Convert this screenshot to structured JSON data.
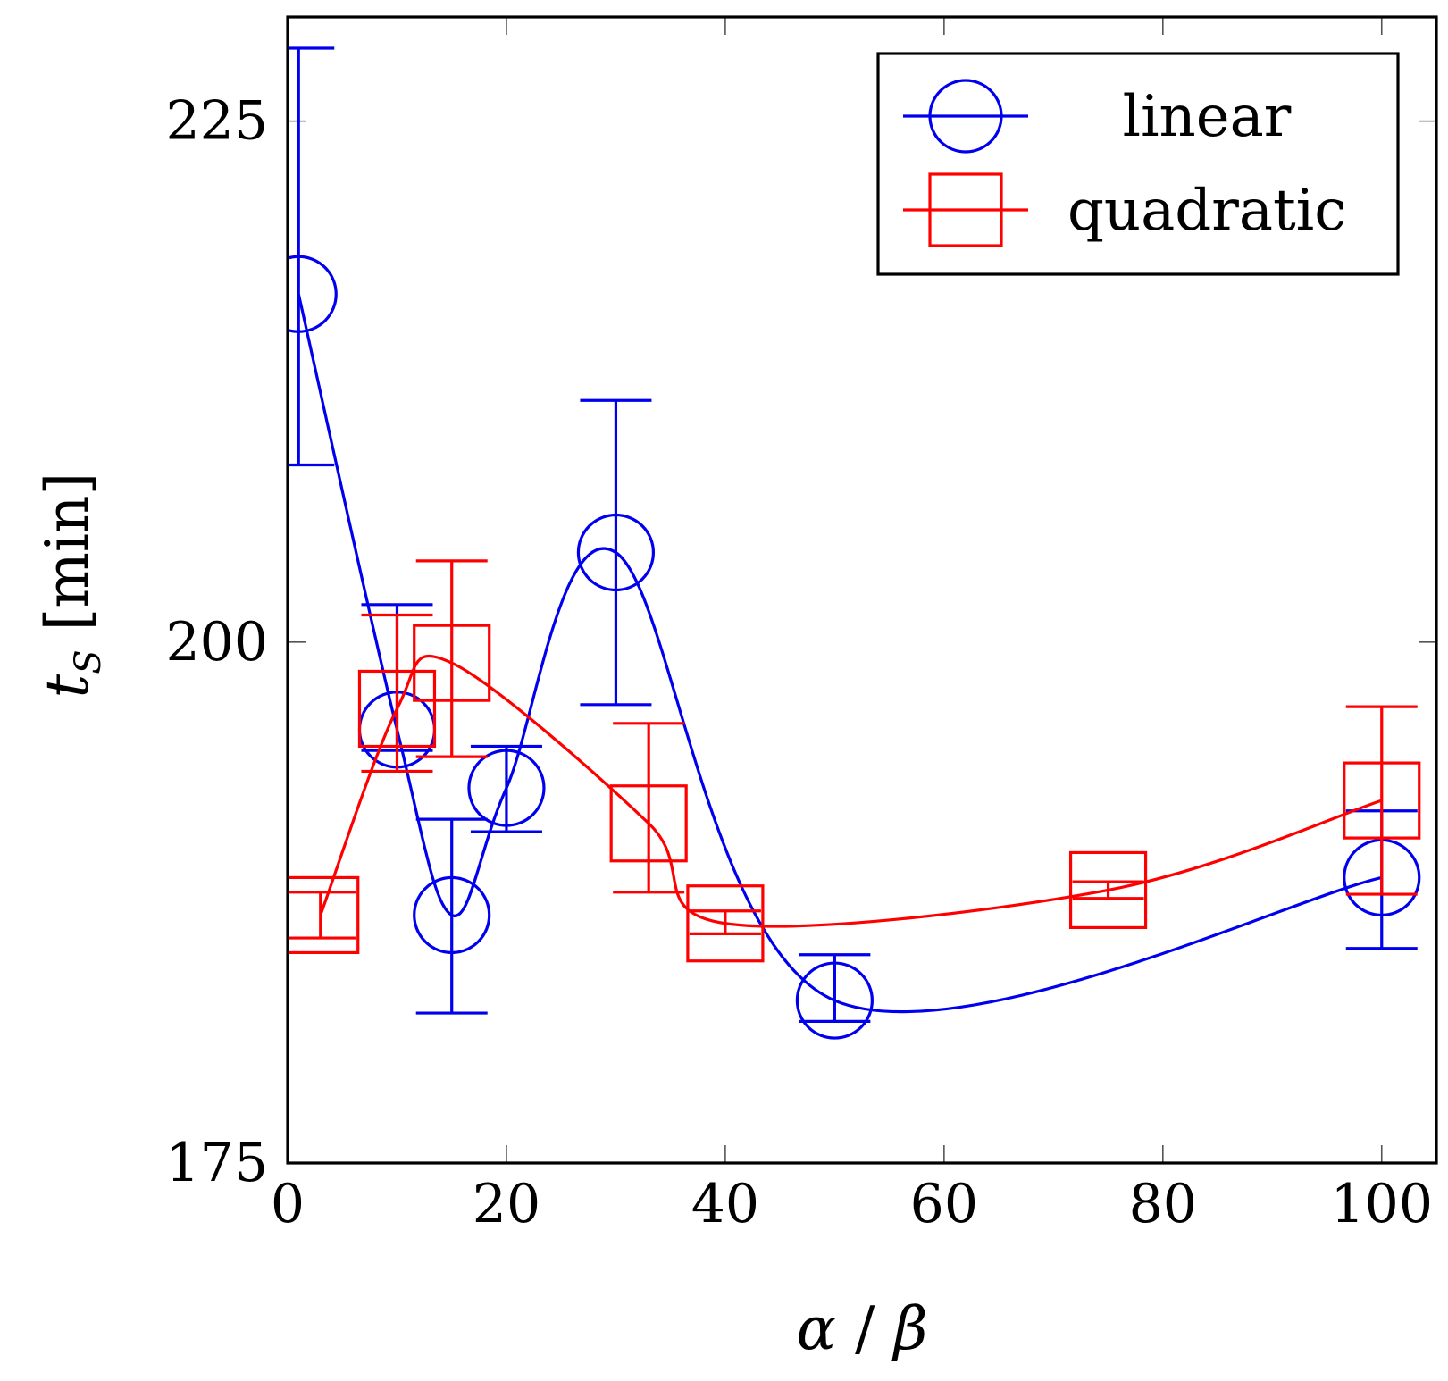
{
  "chart_data": {
    "type": "line",
    "title": "",
    "xlabel_parts": [
      "α",
      " / ",
      "β"
    ],
    "ylabel_parts": [
      "t",
      "S",
      " [min]"
    ],
    "xlim": [
      0,
      105
    ],
    "ylim": [
      175,
      230
    ],
    "xticks": [
      0,
      20,
      40,
      60,
      80,
      100
    ],
    "yticks": [
      175,
      200,
      225
    ],
    "grid": false,
    "legend_position": "top-right",
    "series": [
      {
        "name": "linear",
        "color": "#0000ee",
        "marker": "circle",
        "x": [
          1,
          10,
          15,
          20,
          30,
          50,
          100
        ],
        "y": [
          216.7,
          195.8,
          186.9,
          193.0,
          204.3,
          182.8,
          188.7
        ],
        "err_low": [
          8.2,
          1.0,
          4.7,
          2.1,
          7.3,
          1.0,
          3.4
        ],
        "err_high": [
          11.8,
          6.0,
          4.6,
          2.0,
          7.3,
          2.2,
          3.2
        ]
      },
      {
        "name": "quadratic",
        "color": "#ff0000",
        "marker": "square",
        "x": [
          3,
          10,
          15,
          33,
          40,
          75,
          100
        ],
        "y": [
          186.9,
          196.8,
          199.0,
          191.3,
          186.5,
          188.1,
          192.4
        ],
        "err_low": [
          1.1,
          3.0,
          4.5,
          3.3,
          0.5,
          0.4,
          4.5
        ],
        "err_high": [
          1.1,
          4.5,
          4.9,
          4.8,
          0.6,
          0.4,
          4.5
        ]
      }
    ]
  }
}
